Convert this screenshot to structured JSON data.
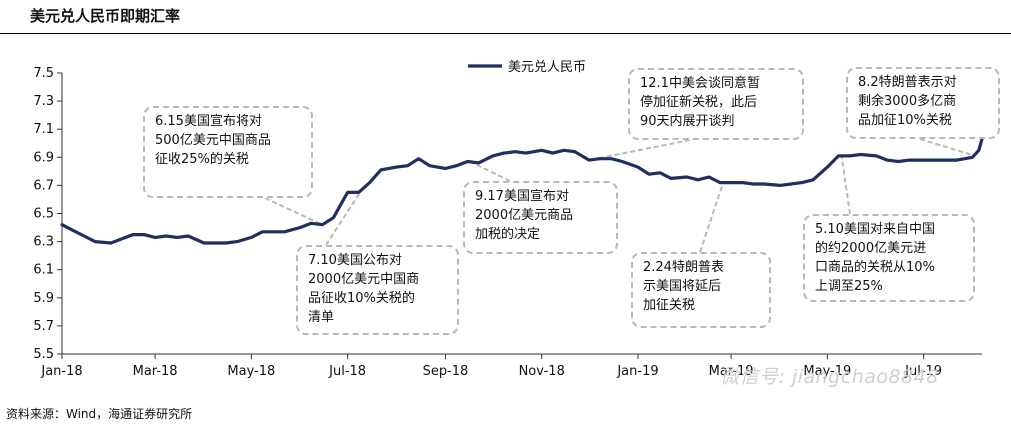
{
  "title": "美元兑人民币即期汇率",
  "source": "资料来源：Wind，海通证券研究所",
  "watermark": "微信号: jiangchao8848",
  "colors": {
    "line": "#1f2f5f",
    "box_border": "#b8b8b8",
    "pointer": "#b8b8b8"
  },
  "chart_data": {
    "type": "line",
    "title": "",
    "xlabel": "",
    "ylabel": "",
    "ylim": [
      5.5,
      7.5
    ],
    "yticks": [
      "7.5",
      "7.3",
      "7.1",
      "6.9",
      "6.7",
      "6.5",
      "6.3",
      "6.1",
      "5.9",
      "5.7",
      "5.5"
    ],
    "xticks": [
      "Jan-18",
      "Mar-18",
      "May-18",
      "Jul-18",
      "Sep-18",
      "Nov-18",
      "Jan-19",
      "Mar-19",
      "May-19",
      "Jul-19"
    ],
    "xlim": [
      "2018-01-01",
      "2019-08-07"
    ],
    "legend": {
      "position": "top-center",
      "entries": [
        "美元兑人民币"
      ]
    },
    "grid": false,
    "series": [
      {
        "name": "美元兑人民币",
        "points": [
          [
            "2018-01-01",
            6.42
          ],
          [
            "2018-01-08",
            6.38
          ],
          [
            "2018-01-15",
            6.34
          ],
          [
            "2018-01-22",
            6.3
          ],
          [
            "2018-02-01",
            6.29
          ],
          [
            "2018-02-08",
            6.32
          ],
          [
            "2018-02-15",
            6.35
          ],
          [
            "2018-02-22",
            6.35
          ],
          [
            "2018-03-01",
            6.33
          ],
          [
            "2018-03-08",
            6.34
          ],
          [
            "2018-03-15",
            6.33
          ],
          [
            "2018-03-22",
            6.34
          ],
          [
            "2018-04-01",
            6.29
          ],
          [
            "2018-04-08",
            6.29
          ],
          [
            "2018-04-15",
            6.29
          ],
          [
            "2018-04-22",
            6.3
          ],
          [
            "2018-05-01",
            6.33
          ],
          [
            "2018-05-08",
            6.37
          ],
          [
            "2018-05-15",
            6.37
          ],
          [
            "2018-05-22",
            6.37
          ],
          [
            "2018-06-01",
            6.4
          ],
          [
            "2018-06-08",
            6.43
          ],
          [
            "2018-06-15",
            6.42
          ],
          [
            "2018-06-22",
            6.47
          ],
          [
            "2018-07-01",
            6.65
          ],
          [
            "2018-07-08",
            6.65
          ],
          [
            "2018-07-15",
            6.72
          ],
          [
            "2018-07-22",
            6.81
          ],
          [
            "2018-08-01",
            6.83
          ],
          [
            "2018-08-08",
            6.84
          ],
          [
            "2018-08-15",
            6.89
          ],
          [
            "2018-08-22",
            6.84
          ],
          [
            "2018-09-01",
            6.82
          ],
          [
            "2018-09-08",
            6.84
          ],
          [
            "2018-09-15",
            6.87
          ],
          [
            "2018-09-22",
            6.86
          ],
          [
            "2018-10-01",
            6.91
          ],
          [
            "2018-10-08",
            6.93
          ],
          [
            "2018-10-15",
            6.94
          ],
          [
            "2018-10-22",
            6.93
          ],
          [
            "2018-11-01",
            6.95
          ],
          [
            "2018-11-08",
            6.93
          ],
          [
            "2018-11-15",
            6.95
          ],
          [
            "2018-11-22",
            6.94
          ],
          [
            "2018-12-01",
            6.88
          ],
          [
            "2018-12-08",
            6.89
          ],
          [
            "2018-12-15",
            6.89
          ],
          [
            "2018-12-22",
            6.87
          ],
          [
            "2019-01-01",
            6.83
          ],
          [
            "2019-01-08",
            6.78
          ],
          [
            "2019-01-15",
            6.79
          ],
          [
            "2019-01-22",
            6.75
          ],
          [
            "2019-02-01",
            6.76
          ],
          [
            "2019-02-08",
            6.74
          ],
          [
            "2019-02-15",
            6.76
          ],
          [
            "2019-02-22",
            6.72
          ],
          [
            "2019-03-01",
            6.72
          ],
          [
            "2019-03-08",
            6.72
          ],
          [
            "2019-03-15",
            6.71
          ],
          [
            "2019-03-22",
            6.71
          ],
          [
            "2019-04-01",
            6.7
          ],
          [
            "2019-04-08",
            6.71
          ],
          [
            "2019-04-15",
            6.72
          ],
          [
            "2019-04-22",
            6.74
          ],
          [
            "2019-05-01",
            6.83
          ],
          [
            "2019-05-08",
            6.91
          ],
          [
            "2019-05-15",
            6.91
          ],
          [
            "2019-05-22",
            6.92
          ],
          [
            "2019-06-01",
            6.91
          ],
          [
            "2019-06-08",
            6.88
          ],
          [
            "2019-06-15",
            6.87
          ],
          [
            "2019-06-22",
            6.88
          ],
          [
            "2019-07-01",
            6.88
          ],
          [
            "2019-07-08",
            6.88
          ],
          [
            "2019-07-15",
            6.88
          ],
          [
            "2019-07-22",
            6.88
          ],
          [
            "2019-08-01",
            6.9
          ],
          [
            "2019-08-05",
            6.95
          ],
          [
            "2019-08-07",
            7.03
          ]
        ]
      }
    ],
    "annotations": [
      {
        "text": "6.15美国宣布将对500亿美元中国商品征收25%的关税",
        "lines": [
          "6.15美国宣布将对",
          "500亿美元中国商品",
          "征收25%的关税"
        ],
        "date": "2018-06-15"
      },
      {
        "text": "7.10美国公布对2000亿美元中国商品征收10%关税的清单",
        "lines": [
          "7.10美国公布对",
          "2000亿美元中国商",
          "品征收10%关税的",
          "清单"
        ],
        "date": "2018-07-10"
      },
      {
        "text": "9.17美国宣布对2000亿美元商品加税的决定",
        "lines": [
          "9.17美国宣布对",
          "2000亿美元商品",
          "加税的决定"
        ],
        "date": "2018-09-17"
      },
      {
        "text": "12.1中美会谈同意暂停加征新关税，此后90天内展开谈判",
        "lines": [
          "12.1中美会谈同意暂",
          "停加征新关税，此后",
          "90天内展开谈判"
        ],
        "date": "2018-12-01"
      },
      {
        "text": "2.24特朗普表示美国将延后加征关税",
        "lines": [
          "2.24特朗普表",
          "示美国将延后",
          "加征关税"
        ],
        "date": "2019-02-24"
      },
      {
        "text": "5.10美国对来自中国的约2000亿美元进口商品的关税从10%上调至25%",
        "lines": [
          "5.10美国对来自中国",
          "的约2000亿美元进",
          "口商品的关税从10%",
          "上调至25%"
        ],
        "date": "2019-05-10"
      },
      {
        "text": "8.2特朗普表示对剩余3000多亿商品加征10%关税",
        "lines": [
          "8.2特朗普表示对",
          "剩余3000多亿商",
          "品加征10%关税"
        ],
        "date": "2019-08-02"
      }
    ]
  }
}
